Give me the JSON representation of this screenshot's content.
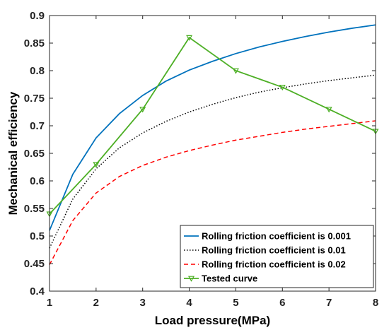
{
  "chart_data": {
    "type": "line",
    "title": "",
    "xlabel": "Load pressure(MPa)",
    "ylabel": "Mechanical efficiency",
    "xlim": [
      1,
      8
    ],
    "ylim": [
      0.4,
      0.9
    ],
    "xticks": [
      1,
      2,
      3,
      4,
      5,
      6,
      7,
      8
    ],
    "yticks": [
      0.4,
      0.45,
      0.5,
      0.55,
      0.6,
      0.65,
      0.7,
      0.75,
      0.8,
      0.85,
      0.9
    ],
    "grid": false,
    "legend_position": "bottom-right",
    "series": [
      {
        "name": "Rolling friction coefficient is 0.001",
        "color": "#0072BD",
        "line_style": "solid",
        "marker": "none",
        "x": [
          1,
          1.5,
          2,
          2.5,
          3,
          3.5,
          4,
          4.5,
          5,
          5.5,
          6,
          6.5,
          7,
          7.5,
          8
        ],
        "y": [
          0.51,
          0.612,
          0.678,
          0.722,
          0.755,
          0.781,
          0.801,
          0.817,
          0.831,
          0.843,
          0.853,
          0.862,
          0.87,
          0.877,
          0.883
        ]
      },
      {
        "name": "Rolling friction coefficient is 0.01",
        "color": "#000000",
        "line_style": "dotted",
        "marker": "none",
        "x": [
          1,
          1.5,
          2,
          2.5,
          3,
          3.5,
          4,
          4.5,
          5,
          5.5,
          6,
          6.5,
          7,
          7.5,
          8
        ],
        "y": [
          0.478,
          0.567,
          0.622,
          0.66,
          0.687,
          0.708,
          0.725,
          0.739,
          0.751,
          0.761,
          0.769,
          0.776,
          0.782,
          0.787,
          0.792
        ]
      },
      {
        "name": "Rolling friction coefficient is 0.02",
        "color": "#FF0000",
        "line_style": "dashed",
        "marker": "none",
        "x": [
          1,
          1.5,
          2,
          2.5,
          3,
          3.5,
          4,
          4.5,
          5,
          5.5,
          6,
          6.5,
          7,
          7.5,
          8
        ],
        "y": [
          0.448,
          0.528,
          0.578,
          0.608,
          0.628,
          0.643,
          0.655,
          0.665,
          0.674,
          0.681,
          0.688,
          0.694,
          0.699,
          0.704,
          0.709
        ]
      },
      {
        "name": "Tested curve",
        "color": "#4DAF25",
        "line_style": "solid",
        "marker": "triangle-down",
        "x": [
          1,
          2,
          3,
          4,
          5,
          6,
          7,
          8
        ],
        "y": [
          0.54,
          0.63,
          0.73,
          0.86,
          0.8,
          0.77,
          0.73,
          0.69
        ]
      }
    ]
  }
}
